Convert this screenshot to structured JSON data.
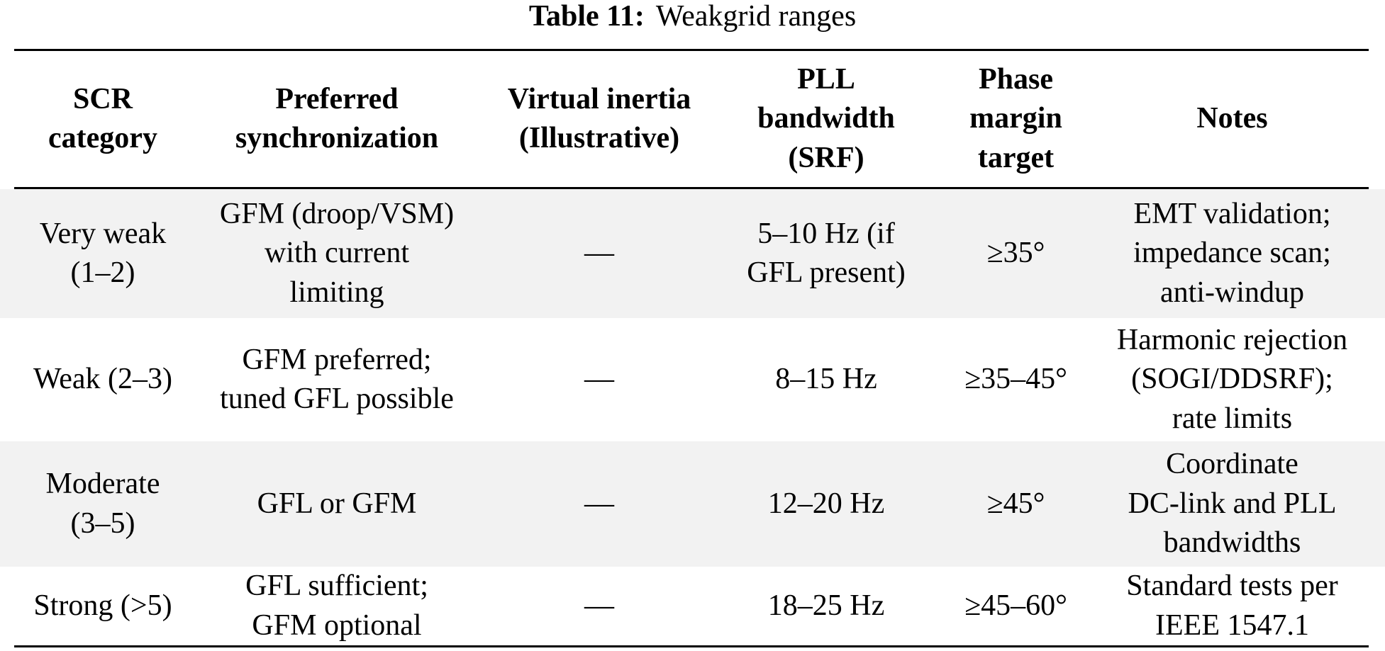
{
  "caption": {
    "label": "Table 11:",
    "text": "Weakgrid ranges"
  },
  "table": {
    "header": [
      "SCR\ncategory",
      "Preferred\nsynchronization",
      "Virtual inertia\n(Illustrative)",
      "PLL\nbandwidth\n(SRF)",
      "Phase\nmargin\ntarget",
      "Notes"
    ],
    "rows": [
      [
        "Very weak\n(1–2)",
        "GFM (droop/VSM)\nwith current\nlimiting",
        "—",
        "5–10 Hz (if\nGFL present)",
        "≥35°",
        "EMT validation;\nimpedance scan;\nanti-windup"
      ],
      [
        "Weak (2–3)",
        "GFM preferred;\ntuned GFL possible",
        "—",
        "8–15 Hz",
        "≥35–45°",
        "Harmonic rejection\n(SOGI/DDSRF);\nrate limits"
      ],
      [
        "Moderate\n(3–5)",
        "GFL or GFM",
        "—",
        "12–20 Hz",
        "≥45°",
        "Coordinate\nDC-link and PLL\nbandwidths"
      ],
      [
        "Strong (>5)",
        "GFL sufficient;\nGFM optional",
        "—",
        "18–25 Hz",
        "≥45–60°",
        "Standard tests per\nIEEE 1547.1"
      ]
    ]
  },
  "colors": {
    "stripe": "#f2f2f2",
    "rule": "#000000",
    "text": "#000000",
    "background": "#ffffff"
  }
}
